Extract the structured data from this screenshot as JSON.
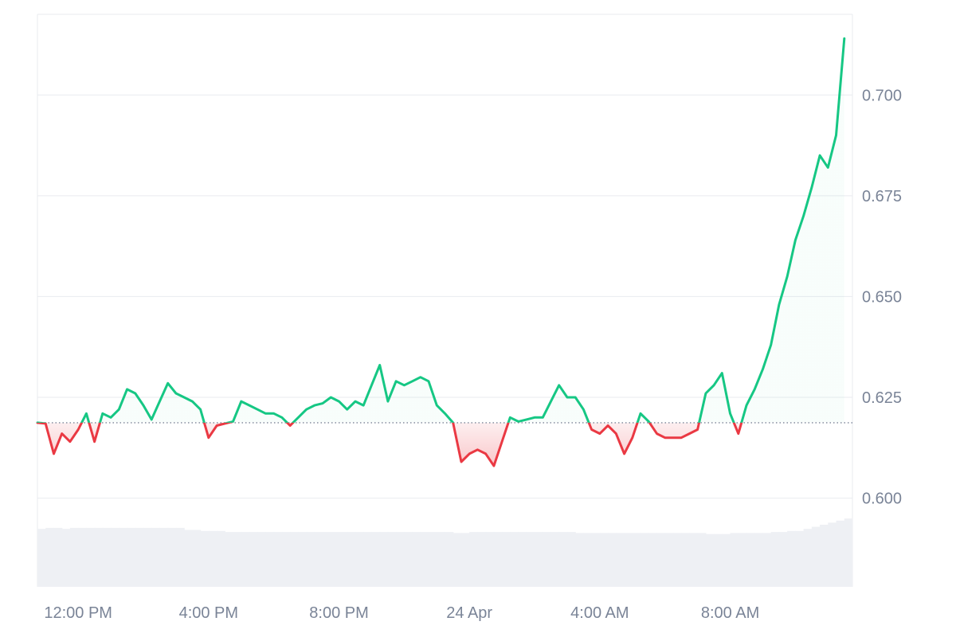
{
  "chart_data": {
    "type": "area",
    "baseline": 0.6187,
    "ylim": [
      0.578,
      0.72
    ],
    "xlim": [
      "2025-04-23T10:45",
      "2025-04-24T11:45"
    ],
    "y_ticks": [
      "0.600",
      "0.625",
      "0.650",
      "0.675",
      "0.700"
    ],
    "y_tick_values": [
      0.6,
      0.625,
      0.65,
      0.675,
      0.7
    ],
    "x_ticks": [
      {
        "label": "12:00 PM",
        "t": "2025-04-23T12:00"
      },
      {
        "label": "4:00 PM",
        "t": "2025-04-23T16:00"
      },
      {
        "label": "8:00 PM",
        "t": "2025-04-23T20:00"
      },
      {
        "label": "24 Apr",
        "t": "2025-04-24T00:00"
      },
      {
        "label": "4:00 AM",
        "t": "2025-04-24T04:00"
      },
      {
        "label": "8:00 AM",
        "t": "2025-04-24T08:00"
      }
    ],
    "colors": {
      "above": "#16c784",
      "below": "#ea3943",
      "grid": "#e9ebef",
      "volume": "#eef0f4",
      "baseline": "#7a8497"
    },
    "series": [
      {
        "values": [
          [
            "2025-04-23T10:45",
            0.6187
          ],
          [
            "2025-04-23T11:00",
            0.6185
          ],
          [
            "2025-04-23T11:15",
            0.611
          ],
          [
            "2025-04-23T11:30",
            0.616
          ],
          [
            "2025-04-23T11:45",
            0.614
          ],
          [
            "2025-04-23T12:00",
            0.617
          ],
          [
            "2025-04-23T12:15",
            0.621
          ],
          [
            "2025-04-23T12:30",
            0.614
          ],
          [
            "2025-04-23T12:45",
            0.621
          ],
          [
            "2025-04-23T13:00",
            0.62
          ],
          [
            "2025-04-23T13:15",
            0.622
          ],
          [
            "2025-04-23T13:30",
            0.627
          ],
          [
            "2025-04-23T13:45",
            0.626
          ],
          [
            "2025-04-23T14:00",
            0.623
          ],
          [
            "2025-04-23T14:15",
            0.6195
          ],
          [
            "2025-04-23T14:30",
            0.624
          ],
          [
            "2025-04-23T14:45",
            0.6285
          ],
          [
            "2025-04-23T15:00",
            0.626
          ],
          [
            "2025-04-23T15:15",
            0.625
          ],
          [
            "2025-04-23T15:30",
            0.624
          ],
          [
            "2025-04-23T15:45",
            0.622
          ],
          [
            "2025-04-23T16:00",
            0.615
          ],
          [
            "2025-04-23T16:15",
            0.618
          ],
          [
            "2025-04-23T16:30",
            0.6185
          ],
          [
            "2025-04-23T16:45",
            0.619
          ],
          [
            "2025-04-23T17:00",
            0.624
          ],
          [
            "2025-04-23T17:15",
            0.623
          ],
          [
            "2025-04-23T17:30",
            0.622
          ],
          [
            "2025-04-23T17:45",
            0.621
          ],
          [
            "2025-04-23T18:00",
            0.621
          ],
          [
            "2025-04-23T18:15",
            0.62
          ],
          [
            "2025-04-23T18:30",
            0.618
          ],
          [
            "2025-04-23T18:45",
            0.62
          ],
          [
            "2025-04-23T19:00",
            0.622
          ],
          [
            "2025-04-23T19:15",
            0.623
          ],
          [
            "2025-04-23T19:30",
            0.6235
          ],
          [
            "2025-04-23T19:45",
            0.625
          ],
          [
            "2025-04-23T20:00",
            0.624
          ],
          [
            "2025-04-23T20:15",
            0.622
          ],
          [
            "2025-04-23T20:30",
            0.624
          ],
          [
            "2025-04-23T20:45",
            0.623
          ],
          [
            "2025-04-23T21:00",
            0.628
          ],
          [
            "2025-04-23T21:15",
            0.633
          ],
          [
            "2025-04-23T21:30",
            0.624
          ],
          [
            "2025-04-23T21:45",
            0.629
          ],
          [
            "2025-04-23T22:00",
            0.628
          ],
          [
            "2025-04-23T22:15",
            0.629
          ],
          [
            "2025-04-23T22:30",
            0.63
          ],
          [
            "2025-04-23T22:45",
            0.629
          ],
          [
            "2025-04-23T23:00",
            0.623
          ],
          [
            "2025-04-23T23:15",
            0.621
          ],
          [
            "2025-04-23T23:30",
            0.6187
          ],
          [
            "2025-04-23T23:45",
            0.609
          ],
          [
            "2025-04-24T00:00",
            0.611
          ],
          [
            "2025-04-24T00:15",
            0.612
          ],
          [
            "2025-04-24T00:30",
            0.611
          ],
          [
            "2025-04-24T00:45",
            0.608
          ],
          [
            "2025-04-24T01:00",
            0.614
          ],
          [
            "2025-04-24T01:15",
            0.62
          ],
          [
            "2025-04-24T01:30",
            0.619
          ],
          [
            "2025-04-24T01:45",
            0.6195
          ],
          [
            "2025-04-24T02:00",
            0.62
          ],
          [
            "2025-04-24T02:15",
            0.62
          ],
          [
            "2025-04-24T02:30",
            0.624
          ],
          [
            "2025-04-24T02:45",
            0.628
          ],
          [
            "2025-04-24T03:00",
            0.625
          ],
          [
            "2025-04-24T03:15",
            0.625
          ],
          [
            "2025-04-24T03:30",
            0.622
          ],
          [
            "2025-04-24T03:45",
            0.617
          ],
          [
            "2025-04-24T04:00",
            0.616
          ],
          [
            "2025-04-24T04:15",
            0.618
          ],
          [
            "2025-04-24T04:30",
            0.616
          ],
          [
            "2025-04-24T04:45",
            0.611
          ],
          [
            "2025-04-24T05:00",
            0.615
          ],
          [
            "2025-04-24T05:15",
            0.621
          ],
          [
            "2025-04-24T05:30",
            0.619
          ],
          [
            "2025-04-24T05:45",
            0.616
          ],
          [
            "2025-04-24T06:00",
            0.615
          ],
          [
            "2025-04-24T06:15",
            0.615
          ],
          [
            "2025-04-24T06:30",
            0.615
          ],
          [
            "2025-04-24T06:45",
            0.616
          ],
          [
            "2025-04-24T07:00",
            0.617
          ],
          [
            "2025-04-24T07:15",
            0.626
          ],
          [
            "2025-04-24T07:30",
            0.628
          ],
          [
            "2025-04-24T07:45",
            0.631
          ],
          [
            "2025-04-24T08:00",
            0.621
          ],
          [
            "2025-04-24T08:15",
            0.616
          ],
          [
            "2025-04-24T08:30",
            0.623
          ],
          [
            "2025-04-24T08:45",
            0.627
          ],
          [
            "2025-04-24T09:00",
            0.632
          ],
          [
            "2025-04-24T09:15",
            0.638
          ],
          [
            "2025-04-24T09:30",
            0.648
          ],
          [
            "2025-04-24T09:45",
            0.655
          ],
          [
            "2025-04-24T10:00",
            0.664
          ],
          [
            "2025-04-24T10:15",
            0.67
          ],
          [
            "2025-04-24T10:30",
            0.677
          ],
          [
            "2025-04-24T10:45",
            0.685
          ],
          [
            "2025-04-24T11:00",
            0.682
          ],
          [
            "2025-04-24T11:15",
            0.69
          ],
          [
            "2025-04-24T11:30",
            0.714
          ]
        ]
      }
    ],
    "volume_relative": [
      0.56,
      0.57,
      0.57,
      0.56,
      0.57,
      0.57,
      0.57,
      0.57,
      0.57,
      0.57,
      0.57,
      0.57,
      0.57,
      0.57,
      0.57,
      0.57,
      0.57,
      0.57,
      0.55,
      0.55,
      0.54,
      0.54,
      0.54,
      0.53,
      0.53,
      0.53,
      0.53,
      0.53,
      0.53,
      0.53,
      0.53,
      0.53,
      0.53,
      0.53,
      0.53,
      0.53,
      0.53,
      0.53,
      0.53,
      0.53,
      0.53,
      0.53,
      0.53,
      0.53,
      0.53,
      0.53,
      0.53,
      0.53,
      0.53,
      0.53,
      0.53,
      0.52,
      0.52,
      0.53,
      0.53,
      0.53,
      0.53,
      0.53,
      0.53,
      0.53,
      0.53,
      0.53,
      0.53,
      0.53,
      0.53,
      0.53,
      0.52,
      0.52,
      0.52,
      0.52,
      0.52,
      0.52,
      0.52,
      0.52,
      0.52,
      0.52,
      0.52,
      0.52,
      0.52,
      0.52,
      0.52,
      0.52,
      0.51,
      0.51,
      0.51,
      0.52,
      0.52,
      0.52,
      0.52,
      0.52,
      0.53,
      0.53,
      0.54,
      0.54,
      0.56,
      0.58,
      0.6,
      0.62,
      0.64,
      0.66
    ]
  }
}
